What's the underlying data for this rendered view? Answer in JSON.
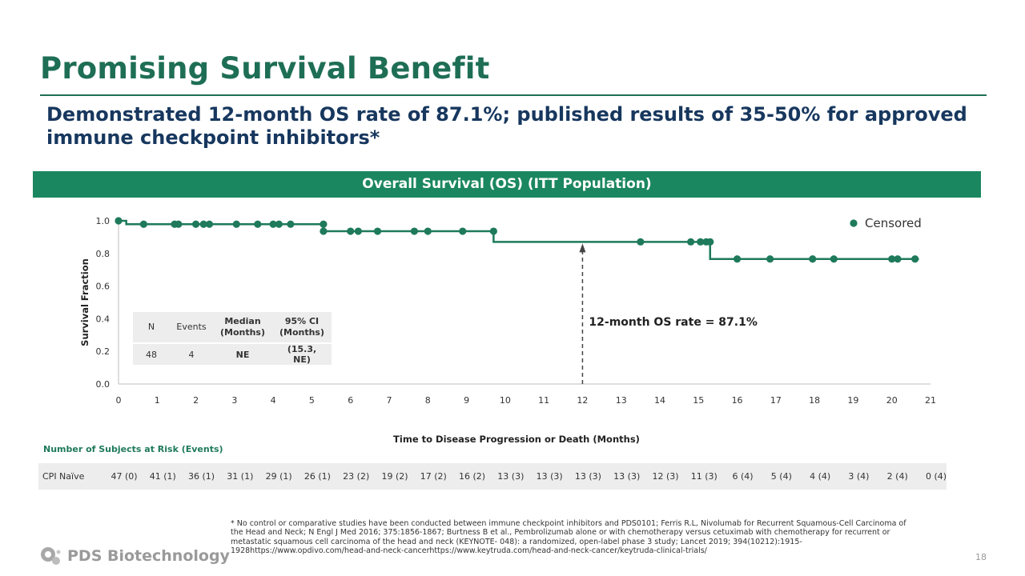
{
  "title": "Promising Survival Benefit",
  "subtitle": "Demonstrated 12-month OS rate of 87.1%; published results of 35-50% for approved immune checkpoint inhibitors*",
  "banner": "Overall Survival (OS) (ITT Population)",
  "chart_data": {
    "type": "line",
    "title": "",
    "xlabel": "Time to Disease Progression or Death (Months)",
    "ylabel": "Survival Fraction",
    "xlim": [
      0,
      21
    ],
    "ylim": [
      0,
      1.0
    ],
    "x_ticks": [
      "0",
      "1",
      "2",
      "3",
      "4",
      "5",
      "6",
      "7",
      "8",
      "9",
      "10",
      "11",
      "12",
      "13",
      "14",
      "15",
      "16",
      "17",
      "18",
      "19",
      "20",
      "21"
    ],
    "y_ticks": [
      "0.0",
      "0.2",
      "0.4",
      "0.6",
      "0.8",
      "1.0"
    ],
    "grid": false,
    "series": [
      {
        "name": "",
        "steps": [
          [
            0,
            1.0
          ],
          [
            0.2,
            0.979
          ],
          [
            5.3,
            0.936
          ],
          [
            9.7,
            0.871
          ],
          [
            15.3,
            0.766
          ],
          [
            20.7,
            0.766
          ]
        ],
        "censored": [
          [
            0,
            1.0
          ],
          [
            0.65,
            0.979
          ],
          [
            1.45,
            0.979
          ],
          [
            1.55,
            0.979
          ],
          [
            2.0,
            0.979
          ],
          [
            2.2,
            0.979
          ],
          [
            2.35,
            0.979
          ],
          [
            3.05,
            0.979
          ],
          [
            3.6,
            0.979
          ],
          [
            4.0,
            0.979
          ],
          [
            4.15,
            0.979
          ],
          [
            4.45,
            0.979
          ],
          [
            5.3,
            0.979
          ],
          [
            5.3,
            0.936
          ],
          [
            6.0,
            0.936
          ],
          [
            6.2,
            0.936
          ],
          [
            6.7,
            0.936
          ],
          [
            7.65,
            0.936
          ],
          [
            8.0,
            0.936
          ],
          [
            8.9,
            0.936
          ],
          [
            9.7,
            0.936
          ],
          [
            13.5,
            0.871
          ],
          [
            14.8,
            0.871
          ],
          [
            15.05,
            0.871
          ],
          [
            15.2,
            0.871
          ],
          [
            15.3,
            0.871
          ],
          [
            16.0,
            0.766
          ],
          [
            16.85,
            0.766
          ],
          [
            17.95,
            0.766
          ],
          [
            18.5,
            0.766
          ],
          [
            20.0,
            0.766
          ],
          [
            20.15,
            0.766
          ],
          [
            20.6,
            0.766
          ]
        ]
      }
    ],
    "legend": {
      "label": "Censored",
      "position": "top-right"
    },
    "annotation": {
      "text": "12-month OS rate = 87.1%",
      "x": 12,
      "y": 0.871
    }
  },
  "info_table": {
    "headers": [
      "N",
      "Events",
      "Median (Months)",
      "95% CI (Months)"
    ],
    "values": [
      "48",
      "4",
      "NE",
      "(15.3, NE)"
    ]
  },
  "risk": {
    "title": "Number of Subjects at Risk (Events)",
    "label": "CPI Naïve",
    "values": [
      "47 (0)",
      "41 (1)",
      "36 (1)",
      "31 (1)",
      "29 (1)",
      "26 (1)",
      "23 (2)",
      "19 (2)",
      "17 (2)",
      "16 (2)",
      "13 (3)",
      "13 (3)",
      "13 (3)",
      "13 (3)",
      "12 (3)",
      "11 (3)",
      "6 (4)",
      "5 (4)",
      "4 (4)",
      "3 (4)",
      "2 (4)",
      "0 (4)"
    ]
  },
  "footnote": "* No control or comparative studies have been conducted between immune checkpoint inhibitors and PDS0101; Ferris R.L, Nivolumab for Recurrent Squamous-Cell Carcinoma of the Head and Neck; N Engl J Med 2016; 375:1856-1867; Burtness B et al., Pembrolizumab alone or with chemotherapy versus cetuximab with chemotherapy for recurrent or metastatic squamous cell carcinoma of the head and neck (KEYNOTE- 048): a randomized, open-label phase 3 study; Lancet 2019; 394(10212):1915-1928https://www.opdivo.com/head-and-neck-cancerhttps://www.keytruda.com/head-and-neck-cancer/keytruda-clinical-trials/",
  "logo_text": "PDS Biotechnology",
  "page_number": "18",
  "colors": {
    "brand": "#1e6e55",
    "curve": "#1e7a5a",
    "banner": "#1b8760",
    "subtitle": "#17375e"
  }
}
